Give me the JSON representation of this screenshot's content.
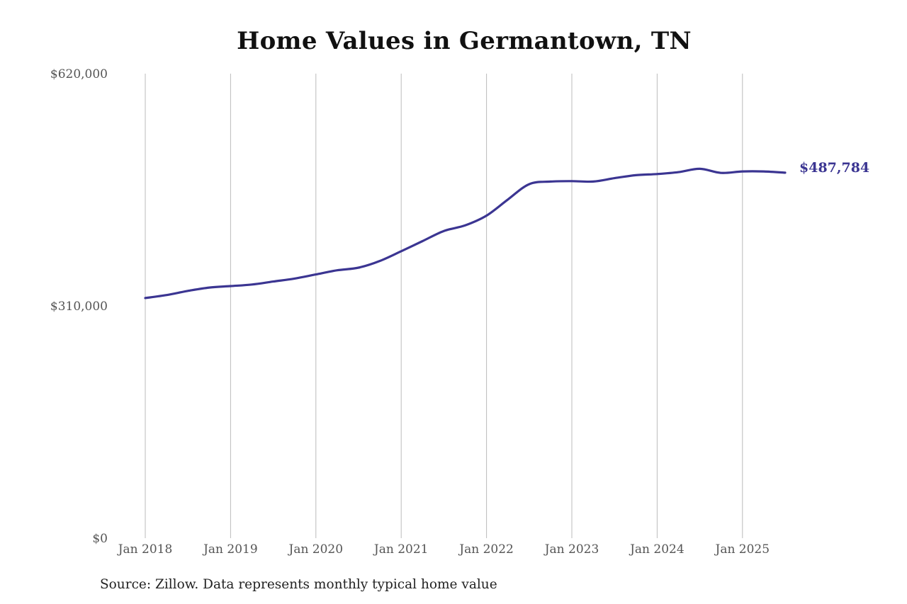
{
  "chart_data": {
    "type": "line",
    "title": "Home Values in Germantown, TN",
    "source_note": "Source: Zillow. Data represents monthly typical home value",
    "xlabel": "",
    "ylabel": "",
    "x_range": [
      "2018-01",
      "2025-07"
    ],
    "ylim": [
      0,
      620000
    ],
    "y_ticks": [
      {
        "value": 0,
        "label": "$0"
      },
      {
        "value": 310000,
        "label": "$310,000"
      },
      {
        "value": 620000,
        "label": "$620,000"
      }
    ],
    "x_ticks": [
      {
        "date": "2018-01",
        "label": "Jan 2018"
      },
      {
        "date": "2019-01",
        "label": "Jan 2019"
      },
      {
        "date": "2020-01",
        "label": "Jan 2020"
      },
      {
        "date": "2021-01",
        "label": "Jan 2021"
      },
      {
        "date": "2022-01",
        "label": "Jan 2022"
      },
      {
        "date": "2023-01",
        "label": "Jan 2023"
      },
      {
        "date": "2024-01",
        "label": "Jan 2024"
      },
      {
        "date": "2025-01",
        "label": "Jan 2025"
      }
    ],
    "grid": {
      "vertical": true,
      "horizontal": false
    },
    "legend": "none",
    "colors": {
      "line": "#3b3592",
      "grid": "#bbbbbb",
      "text": "#555555",
      "title": "#111111"
    },
    "end_label": "$487,784",
    "series": [
      {
        "color": "#3b3592",
        "points": [
          {
            "date": "2018-01",
            "value": 320500
          },
          {
            "date": "2018-04",
            "value": 324500
          },
          {
            "date": "2018-07",
            "value": 330000
          },
          {
            "date": "2018-10",
            "value": 334500
          },
          {
            "date": "2019-01",
            "value": 336500
          },
          {
            "date": "2019-04",
            "value": 338500
          },
          {
            "date": "2019-07",
            "value": 342500
          },
          {
            "date": "2019-10",
            "value": 346500
          },
          {
            "date": "2020-01",
            "value": 352000
          },
          {
            "date": "2020-04",
            "value": 357500
          },
          {
            "date": "2020-07",
            "value": 361000
          },
          {
            "date": "2020-10",
            "value": 370000
          },
          {
            "date": "2021-01",
            "value": 383000
          },
          {
            "date": "2021-04",
            "value": 396500
          },
          {
            "date": "2021-07",
            "value": 410000
          },
          {
            "date": "2021-10",
            "value": 417500
          },
          {
            "date": "2022-01",
            "value": 430500
          },
          {
            "date": "2022-04",
            "value": 452000
          },
          {
            "date": "2022-07",
            "value": 472500
          },
          {
            "date": "2022-10",
            "value": 476000
          },
          {
            "date": "2023-01",
            "value": 476500
          },
          {
            "date": "2023-04",
            "value": 476000
          },
          {
            "date": "2023-07",
            "value": 480500
          },
          {
            "date": "2023-10",
            "value": 484500
          },
          {
            "date": "2024-01",
            "value": 486000
          },
          {
            "date": "2024-04",
            "value": 488500
          },
          {
            "date": "2024-07",
            "value": 493000
          },
          {
            "date": "2024-10",
            "value": 487500
          },
          {
            "date": "2025-01",
            "value": 489500
          },
          {
            "date": "2025-04",
            "value": 489500
          },
          {
            "date": "2025-07",
            "value": 487784
          }
        ]
      }
    ]
  }
}
